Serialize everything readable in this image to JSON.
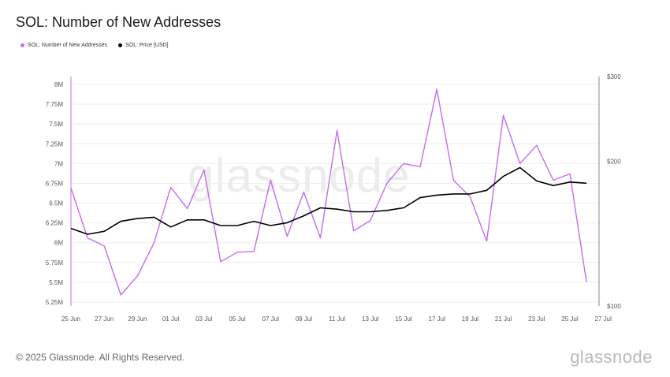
{
  "title": "SOL: Number of New Addresses",
  "footer": "© 2025 Glassnode. All Rights Reserved.",
  "brand": "glassnode",
  "watermark": "glassnode",
  "colors": {
    "addresses": "#c26cf0",
    "price": "#000000",
    "grid": "#eeeeee"
  },
  "chart_data": {
    "type": "line",
    "x": [
      "25 Jun",
      "26 Jun",
      "27 Jun",
      "28 Jun",
      "29 Jun",
      "30 Jun",
      "01 Jul",
      "02 Jul",
      "03 Jul",
      "04 Jul",
      "05 Jul",
      "06 Jul",
      "07 Jul",
      "08 Jul",
      "09 Jul",
      "10 Jul",
      "11 Jul",
      "12 Jul",
      "13 Jul",
      "14 Jul",
      "15 Jul",
      "16 Jul",
      "17 Jul",
      "18 Jul",
      "19 Jul",
      "20 Jul",
      "21 Jul",
      "22 Jul",
      "23 Jul",
      "24 Jul",
      "25 Jul",
      "26 Jul"
    ],
    "x_tick_labels": [
      "25 Jun",
      "27 Jun",
      "29 Jun",
      "01 Jul",
      "03 Jul",
      "05 Jul",
      "07 Jul",
      "09 Jul",
      "11 Jul",
      "13 Jul",
      "15 Jul",
      "17 Jul",
      "19 Jul",
      "21 Jul",
      "23 Jul",
      "25 Jul",
      "27 Jul"
    ],
    "series": [
      {
        "name": "SOL: Number of New Addresses",
        "axis": "left",
        "values": [
          6.69,
          6.06,
          5.96,
          5.34,
          5.58,
          6.0,
          6.7,
          6.43,
          6.92,
          5.76,
          5.88,
          5.89,
          6.79,
          6.08,
          6.64,
          6.06,
          7.42,
          6.15,
          6.28,
          6.75,
          7.0,
          6.96,
          7.94,
          6.79,
          6.58,
          6.02,
          7.61,
          7.0,
          7.23,
          6.79,
          6.87,
          5.5
        ]
      },
      {
        "name": "SOL: Price [USD]",
        "axis": "right",
        "values": [
          145,
          141,
          143,
          150,
          152,
          153,
          146,
          151,
          151,
          147,
          147,
          150,
          147,
          149,
          154,
          160,
          159,
          157,
          157,
          158,
          160,
          168,
          170,
          171,
          171,
          174,
          186,
          194,
          182,
          178,
          181,
          180
        ]
      }
    ],
    "y_left": {
      "ticks": [
        5.25,
        5.5,
        5.75,
        6.0,
        6.25,
        6.5,
        6.75,
        7.0,
        7.25,
        7.5,
        7.75,
        8.0
      ],
      "tick_labels": [
        "5.25M",
        "5.5M",
        "5.75M",
        "6M",
        "6.25M",
        "6.5M",
        "6.75M",
        "7M",
        "7.25M",
        "7.5M",
        "7.75M",
        "8M"
      ],
      "range": [
        5.2,
        8.1
      ]
    },
    "y_right": {
      "scale": "log",
      "ticks": [
        100,
        200,
        300
      ],
      "tick_labels": [
        "$100",
        "$200",
        "$300"
      ],
      "range": [
        100,
        300
      ]
    },
    "grid": true,
    "legend_placement": "top-left"
  }
}
